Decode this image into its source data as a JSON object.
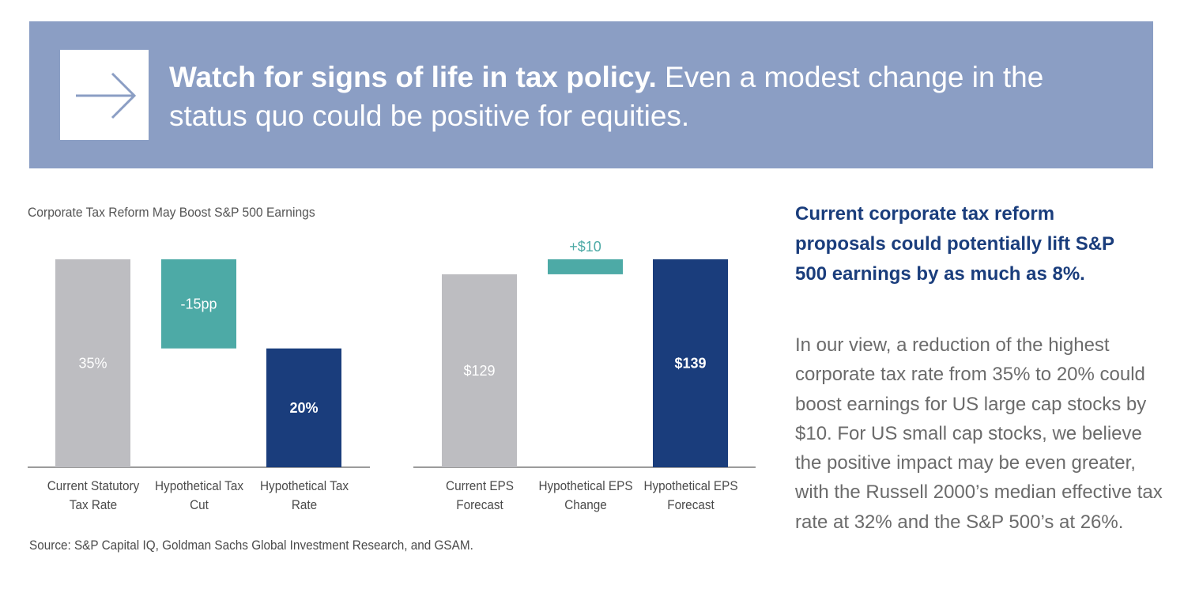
{
  "banner": {
    "headline_bold": "Watch for signs of life in tax policy.",
    "headline_rest": " Even a modest change in the status quo could be positive for equities.",
    "icon": "arrow-right-icon"
  },
  "chart_title": "Corporate Tax Reform May Boost S&P 500 Earnings",
  "chart_data": [
    {
      "type": "bar",
      "subtype": "waterfall",
      "categories": [
        "Current Statutory Tax Rate",
        "Hypothetical Tax Cut",
        "Hypothetical Tax Rate"
      ],
      "values": [
        35,
        -15,
        20
      ],
      "unit": "%",
      "data_labels": [
        "35%",
        "-15pp",
        "20%"
      ],
      "colors": [
        "#bdbdc1",
        "#4daaa6",
        "#1a3d7c"
      ],
      "ylim": [
        0,
        35
      ]
    },
    {
      "type": "bar",
      "subtype": "waterfall",
      "categories": [
        "Current EPS Forecast",
        "Hypothetical EPS Change",
        "Hypothetical EPS Forecast"
      ],
      "values": [
        129,
        10,
        139
      ],
      "unit": "$",
      "data_labels": [
        "$129",
        "+$10",
        "$139"
      ],
      "colors": [
        "#bdbdc1",
        "#4daaa6",
        "#1a3d7c"
      ],
      "ylim": [
        0,
        139
      ]
    }
  ],
  "source": "Source: S&P Capital IQ, Goldman Sachs Global Investment Research, and GSAM.",
  "side_heading": "Current corporate tax reform proposals could potentially lift S&P 500 earnings by as much as 8%.",
  "side_body": "In our view, a reduction of the highest corporate tax rate from 35% to 20% could boost earnings for US large cap stocks by $10. For US small cap stocks, we believe the positive impact may be even greater, with the Russell 2000’s median effective tax rate at 32% and the S&P 500’s at 26%.",
  "colors": {
    "banner": "#8b9ec4",
    "navy": "#1a3d7c",
    "teal": "#4daaa6",
    "gray": "#bdbdc1"
  }
}
